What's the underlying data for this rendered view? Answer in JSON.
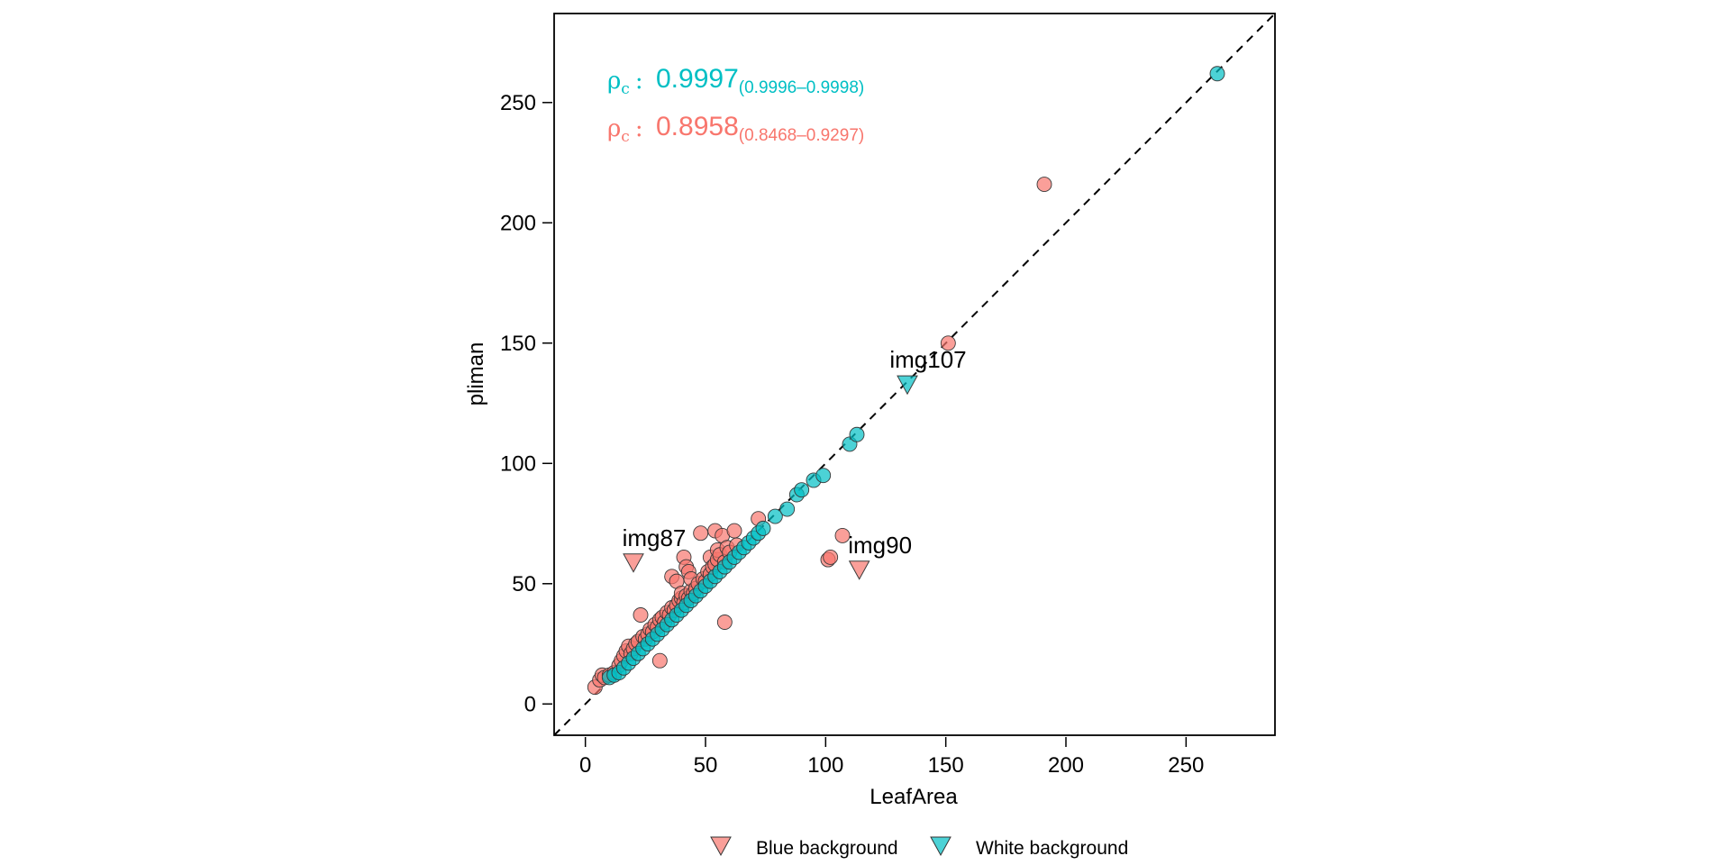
{
  "chart_data": {
    "type": "scatter",
    "xlabel": "LeafArea",
    "ylabel": "pliman",
    "xlim": [
      -13,
      287
    ],
    "ylim": [
      -13,
      287
    ],
    "xticks": [
      0,
      50,
      100,
      150,
      200,
      250
    ],
    "yticks": [
      0,
      50,
      100,
      150,
      200,
      250
    ],
    "identity_line": true,
    "grid": false,
    "legend_position": "bottom",
    "colors": {
      "blue_bg": "#F8766D",
      "white_bg": "#00BFC4"
    },
    "stats": [
      {
        "series": "White background",
        "symbol": "ρ",
        "subscript": "c",
        "sep": ":",
        "value": "0.9997",
        "ci": "(0.9996–0.9998)",
        "color": "#00BFC4"
      },
      {
        "series": "Blue background",
        "symbol": "ρ",
        "subscript": "c",
        "sep": ":",
        "value": "0.8958",
        "ci": "(0.8468–0.9297)",
        "color": "#F8766D"
      }
    ],
    "series": [
      {
        "name": "Blue background",
        "color": "#F8766D",
        "points": [
          [
            4,
            7
          ],
          [
            6,
            10
          ],
          [
            7,
            12
          ],
          [
            8,
            11
          ],
          [
            10,
            12
          ],
          [
            12,
            13
          ],
          [
            14,
            16
          ],
          [
            15,
            18
          ],
          [
            16,
            20
          ],
          [
            17,
            22
          ],
          [
            18,
            24
          ],
          [
            19,
            21
          ],
          [
            20,
            23
          ],
          [
            21,
            25
          ],
          [
            22,
            26
          ],
          [
            23,
            37
          ],
          [
            24,
            28
          ],
          [
            25,
            27
          ],
          [
            26,
            29
          ],
          [
            27,
            31
          ],
          [
            28,
            30
          ],
          [
            29,
            33
          ],
          [
            30,
            32
          ],
          [
            31,
            35
          ],
          [
            31,
            18
          ],
          [
            32,
            36
          ],
          [
            33,
            34
          ],
          [
            34,
            38
          ],
          [
            35,
            37
          ],
          [
            36,
            40
          ],
          [
            36,
            53
          ],
          [
            37,
            39
          ],
          [
            38,
            41
          ],
          [
            38,
            51
          ],
          [
            39,
            43
          ],
          [
            40,
            44
          ],
          [
            40,
            46
          ],
          [
            41,
            42
          ],
          [
            41,
            61
          ],
          [
            42,
            45
          ],
          [
            42,
            57
          ],
          [
            43,
            55
          ],
          [
            43,
            44
          ],
          [
            44,
            47
          ],
          [
            44,
            52
          ],
          [
            45,
            46
          ],
          [
            46,
            48
          ],
          [
            47,
            50
          ],
          [
            48,
            71
          ],
          [
            49,
            52
          ],
          [
            50,
            51
          ],
          [
            51,
            55
          ],
          [
            52,
            54
          ],
          [
            52,
            61
          ],
          [
            53,
            57
          ],
          [
            54,
            58
          ],
          [
            54,
            72
          ],
          [
            55,
            60
          ],
          [
            55,
            64
          ],
          [
            56,
            62
          ],
          [
            57,
            70
          ],
          [
            58,
            59
          ],
          [
            58,
            34
          ],
          [
            59,
            65
          ],
          [
            60,
            63
          ],
          [
            62,
            72
          ],
          [
            63,
            66
          ],
          [
            72,
            77
          ],
          [
            101,
            60
          ],
          [
            102,
            61
          ],
          [
            107,
            70
          ],
          [
            151,
            150
          ],
          [
            191,
            216
          ]
        ],
        "outliers": [
          {
            "label": "img87",
            "x": 20,
            "y": 59
          },
          {
            "label": "img90",
            "x": 114,
            "y": 56
          }
        ]
      },
      {
        "name": "White background",
        "color": "#00BFC4",
        "points": [
          [
            10,
            11
          ],
          [
            12,
            12
          ],
          [
            14,
            13
          ],
          [
            16,
            15
          ],
          [
            18,
            17
          ],
          [
            20,
            19
          ],
          [
            22,
            21
          ],
          [
            24,
            23
          ],
          [
            26,
            25
          ],
          [
            28,
            27
          ],
          [
            30,
            29
          ],
          [
            32,
            31
          ],
          [
            34,
            33
          ],
          [
            36,
            35
          ],
          [
            38,
            37
          ],
          [
            40,
            39
          ],
          [
            42,
            41
          ],
          [
            44,
            43
          ],
          [
            46,
            45
          ],
          [
            48,
            47
          ],
          [
            50,
            49
          ],
          [
            52,
            51
          ],
          [
            54,
            53
          ],
          [
            56,
            55
          ],
          [
            58,
            57
          ],
          [
            60,
            59
          ],
          [
            62,
            61
          ],
          [
            64,
            63
          ],
          [
            66,
            65
          ],
          [
            68,
            67
          ],
          [
            70,
            69
          ],
          [
            72,
            71
          ],
          [
            74,
            73
          ],
          [
            79,
            78
          ],
          [
            84,
            81
          ],
          [
            88,
            87
          ],
          [
            90,
            89
          ],
          [
            95,
            93
          ],
          [
            99,
            95
          ],
          [
            110,
            108
          ],
          [
            113,
            112
          ],
          [
            263,
            262
          ]
        ],
        "outliers": [
          {
            "label": "img107",
            "x": 134,
            "y": 133
          }
        ]
      }
    ]
  }
}
